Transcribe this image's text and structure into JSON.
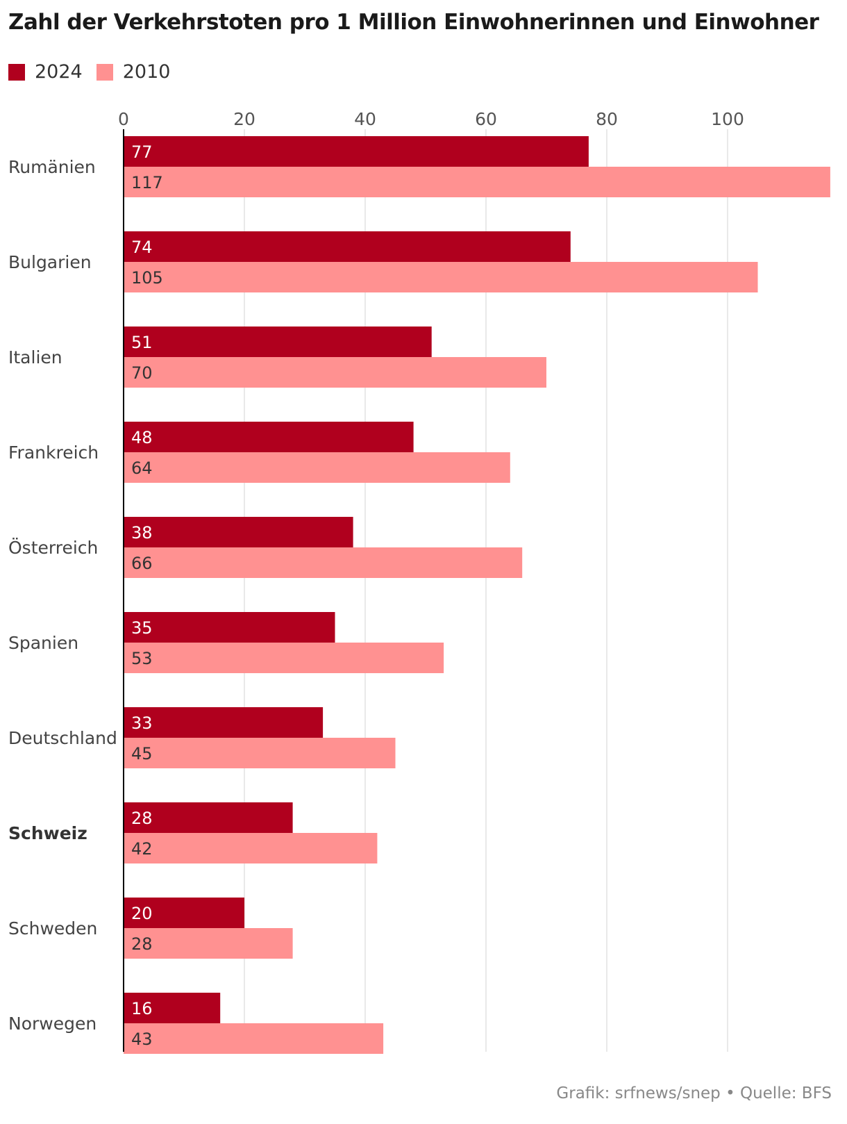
{
  "title": "Zahl der Verkehrstoten pro 1 Million Einwohnerinnen und Einwohner",
  "legend": [
    {
      "label": "2024",
      "color": "#b0001e"
    },
    {
      "label": "2010",
      "color": "#ff9191"
    }
  ],
  "footer": "Grafik: srfnews/snep • Quelle: BFS",
  "chart_data": {
    "type": "bar",
    "orientation": "horizontal",
    "categories": [
      "Rumänien",
      "Bulgarien",
      "Italien",
      "Frankreich",
      "Österreich",
      "Spanien",
      "Deutschland",
      "Schweiz",
      "Schweden",
      "Norwegen"
    ],
    "highlighted_category": "Schweiz",
    "series": [
      {
        "name": "2024",
        "color": "#b0001e",
        "values": [
          77,
          74,
          51,
          48,
          38,
          35,
          33,
          28,
          20,
          16
        ]
      },
      {
        "name": "2010",
        "color": "#ff9191",
        "values": [
          117,
          105,
          70,
          64,
          66,
          53,
          45,
          42,
          28,
          43
        ]
      }
    ],
    "xticks": [
      0,
      20,
      40,
      60,
      80,
      100
    ],
    "xlim": [
      0,
      117
    ],
    "grid": true,
    "xlabel": "",
    "ylabel": "",
    "legend_position": "top-left"
  }
}
